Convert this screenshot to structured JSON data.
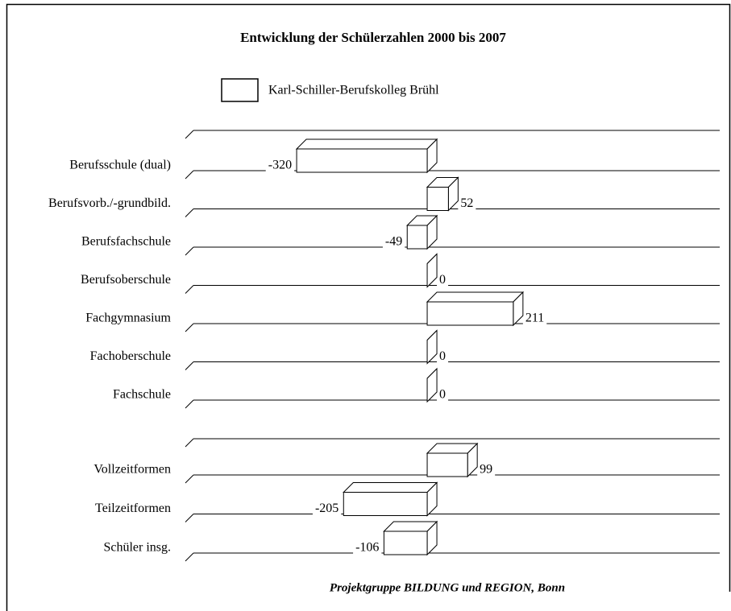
{
  "chart_data": {
    "type": "bar3d",
    "orientation": "horizontal",
    "title": "Entwicklung der Schülerzahlen 2000 bis 2007",
    "categories": [
      "Berufsschule (dual)",
      "Berufsvorb./-grundbild.",
      "Berufsfachschule",
      "Berufsoberschule",
      "Fachgymnasium",
      "Fachoberschule",
      "Fachschule",
      "Vollzeitformen",
      "Teilzeitformen",
      "Schüler insg."
    ],
    "series": [
      {
        "name": "Karl-Schiller-Berufskolleg Brühl",
        "color": "#ffffff",
        "values": [
          -320,
          52,
          -49,
          0,
          211,
          0,
          0,
          99,
          -205,
          -106
        ]
      }
    ],
    "xlim": [
      -573,
      717
    ],
    "source": "Projektgruppe BILDUNG und REGION, Bonn"
  }
}
